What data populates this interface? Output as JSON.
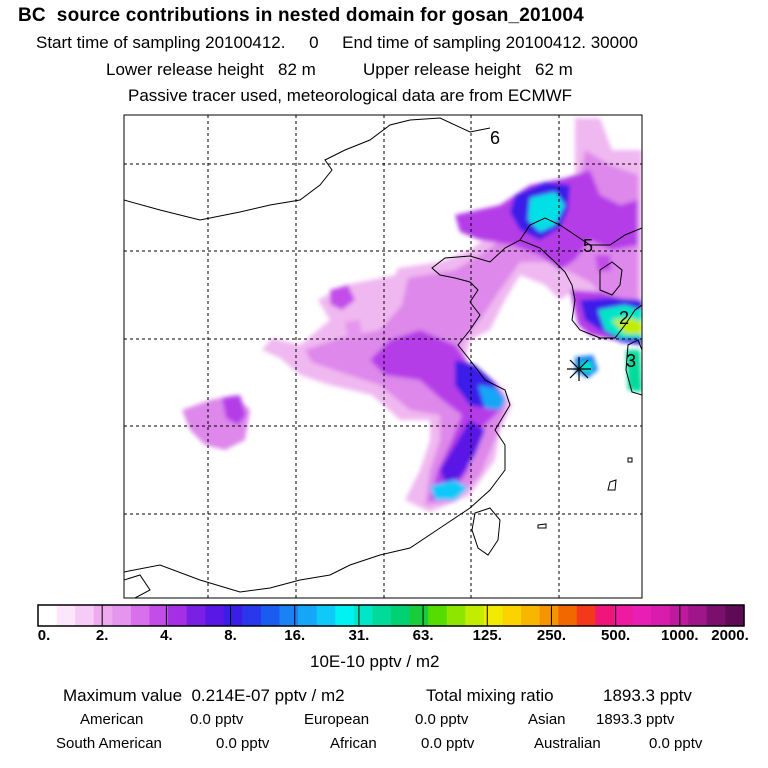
{
  "header": {
    "title": "BC  source contributions in nested domain for gosan_201004",
    "line1": "Start time of sampling 20100412.     0     End time of sampling 20100412. 30000",
    "line2": "Lower release height   82 m          Upper release height   62 m",
    "line3": "Passive tracer used, meteorological data are from ECMWF"
  },
  "map": {
    "region_labels": [
      "6",
      "5",
      "2",
      "3"
    ],
    "receptor_marker": "star-icon"
  },
  "colorbar": {
    "tick_labels": [
      "0.",
      "2.",
      "4.",
      "8.",
      "16.",
      "31.",
      "63.",
      "125.",
      "250.",
      "500.",
      "1000.",
      "2000."
    ],
    "colors": [
      "#ffffff",
      "#fbe6fb",
      "#f6ccf6",
      "#efaaef",
      "#e595ee",
      "#d870ec",
      "#c24de9",
      "#a52fe5",
      "#7a1fe4",
      "#5a18e6",
      "#3b1de8",
      "#2a38ec",
      "#1a5cf0",
      "#1a82f4",
      "#16a6f7",
      "#0fc9f9",
      "#00f2f2",
      "#00e6c7",
      "#00db9b",
      "#00d173",
      "#19cc3c",
      "#55dd00",
      "#8ee600",
      "#c2ed00",
      "#f2ea00",
      "#fbd400",
      "#f8b600",
      "#f59300",
      "#f26800",
      "#f23a1a",
      "#f0157a",
      "#ee1aa0",
      "#e91eb4",
      "#d91cad",
      "#bd1a9d",
      "#9e168a",
      "#7b0f6e",
      "#5e0a56"
    ],
    "unit": "10E-10 pptv / m2"
  },
  "stats": {
    "max_label": "Maximum value  0.214E-07 pptv / m2",
    "total_label": "Total mixing ratio",
    "total_value": "1893.3 pptv",
    "regions": [
      {
        "name": "American",
        "value": "0.0 pptv"
      },
      {
        "name": "European",
        "value": "0.0 pptv"
      },
      {
        "name": "Asian",
        "value": "1893.3 pptv"
      },
      {
        "name": "South American",
        "value": "0.0 pptv"
      },
      {
        "name": "African",
        "value": "0.0 pptv"
      },
      {
        "name": "Australian",
        "value": "0.0 pptv"
      }
    ]
  }
}
